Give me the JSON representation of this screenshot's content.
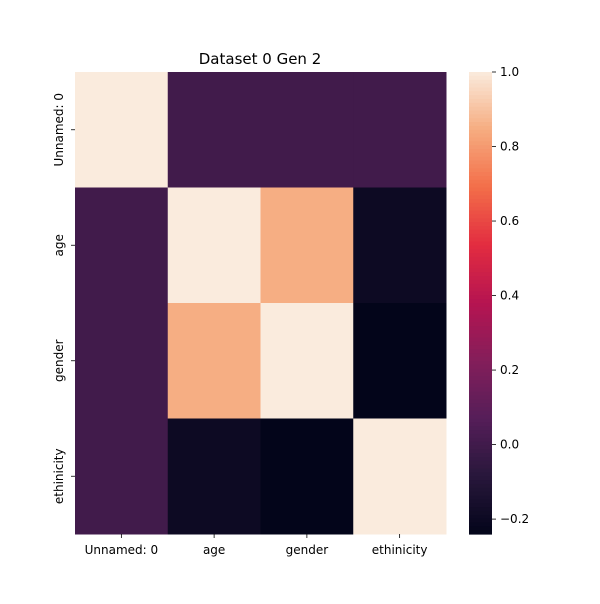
{
  "chart_data": {
    "type": "heatmap",
    "title": "Dataset 0 Gen 2",
    "xlabel": "",
    "ylabel": "",
    "x_categories": [
      "Unnamed: 0",
      "age",
      "gender",
      "ethinicity"
    ],
    "y_categories": [
      "Unnamed: 0",
      "age",
      "gender",
      "ethinicity"
    ],
    "values": [
      [
        1.0,
        0.0,
        0.0,
        0.0
      ],
      [
        0.0,
        1.0,
        0.85,
        -0.2
      ],
      [
        0.0,
        0.85,
        1.0,
        -0.24
      ],
      [
        0.0,
        -0.2,
        -0.24,
        1.0
      ]
    ],
    "colorbar": {
      "min": -0.24,
      "max": 1.0,
      "ticks": [
        -0.2,
        0.0,
        0.2,
        0.4,
        0.6,
        0.8,
        1.0
      ],
      "tick_labels": [
        "−0.2",
        "0.0",
        "0.2",
        "0.4",
        "0.6",
        "0.8",
        "1.0"
      ],
      "colormap": "rocket"
    },
    "grid": false,
    "legend": "colorbar-right"
  }
}
